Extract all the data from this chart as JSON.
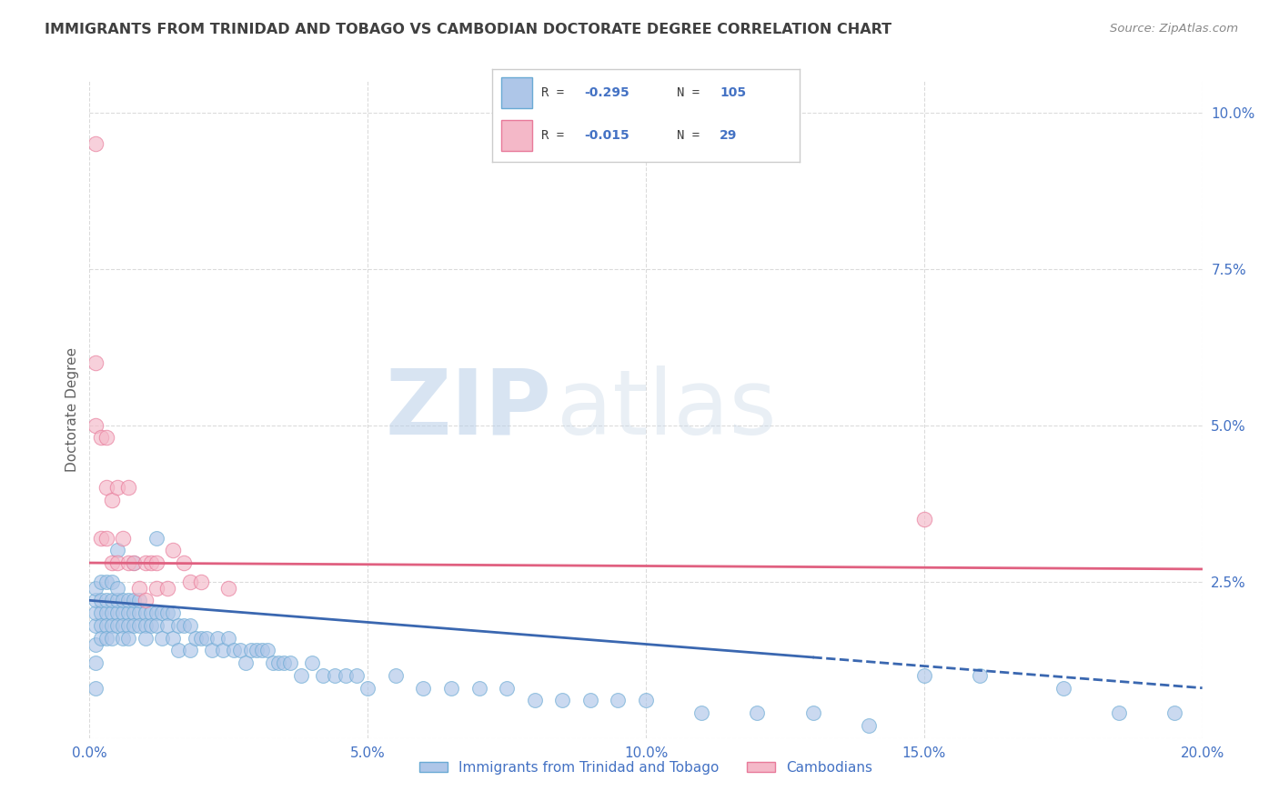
{
  "title": "IMMIGRANTS FROM TRINIDAD AND TOBAGO VS CAMBODIAN DOCTORATE DEGREE CORRELATION CHART",
  "source": "Source: ZipAtlas.com",
  "ylabel": "Doctorate Degree",
  "xlim": [
    0.0,
    0.2
  ],
  "ylim": [
    0.0,
    0.105
  ],
  "xticks": [
    0.0,
    0.05,
    0.1,
    0.15,
    0.2
  ],
  "xticklabels": [
    "0.0%",
    "5.0%",
    "10.0%",
    "15.0%",
    "20.0%"
  ],
  "yticks": [
    0.0,
    0.025,
    0.05,
    0.075,
    0.1
  ],
  "yticklabels": [
    "",
    "2.5%",
    "5.0%",
    "7.5%",
    "10.0%"
  ],
  "blue_color": "#aec6e8",
  "blue_edge": "#6aaad4",
  "pink_color": "#f4b8c8",
  "pink_edge": "#e87a9a",
  "blue_line_color": "#3a67b0",
  "pink_line_color": "#e06080",
  "watermark_zip": "ZIP",
  "watermark_atlas": "atlas",
  "legend_label_blue": "Immigrants from Trinidad and Tobago",
  "legend_label_pink": "Cambodians",
  "background_color": "#ffffff",
  "grid_color": "#cccccc",
  "title_color": "#404040",
  "axis_label_color": "#606060",
  "tick_color": "#4472c4",
  "blue_trend_x0": 0.0,
  "blue_trend_y0": 0.022,
  "blue_trend_x1": 0.2,
  "blue_trend_y1": 0.008,
  "blue_trend_solid_end": 0.13,
  "pink_trend_x0": 0.0,
  "pink_trend_y0": 0.028,
  "pink_trend_x1": 0.2,
  "pink_trend_y1": 0.027,
  "blue_scatter_x": [
    0.001,
    0.001,
    0.001,
    0.001,
    0.001,
    0.001,
    0.001,
    0.002,
    0.002,
    0.002,
    0.002,
    0.002,
    0.003,
    0.003,
    0.003,
    0.003,
    0.003,
    0.004,
    0.004,
    0.004,
    0.004,
    0.004,
    0.005,
    0.005,
    0.005,
    0.005,
    0.006,
    0.006,
    0.006,
    0.006,
    0.007,
    0.007,
    0.007,
    0.007,
    0.008,
    0.008,
    0.008,
    0.009,
    0.009,
    0.009,
    0.01,
    0.01,
    0.01,
    0.011,
    0.011,
    0.012,
    0.012,
    0.013,
    0.013,
    0.014,
    0.014,
    0.015,
    0.015,
    0.016,
    0.016,
    0.017,
    0.018,
    0.018,
    0.019,
    0.02,
    0.021,
    0.022,
    0.023,
    0.024,
    0.025,
    0.026,
    0.027,
    0.028,
    0.029,
    0.03,
    0.031,
    0.032,
    0.033,
    0.034,
    0.035,
    0.036,
    0.038,
    0.04,
    0.042,
    0.044,
    0.046,
    0.048,
    0.05,
    0.055,
    0.06,
    0.065,
    0.07,
    0.075,
    0.08,
    0.085,
    0.09,
    0.095,
    0.1,
    0.11,
    0.12,
    0.13,
    0.14,
    0.15,
    0.16,
    0.175,
    0.185,
    0.195,
    0.005,
    0.008,
    0.012
  ],
  "blue_scatter_y": [
    0.018,
    0.02,
    0.022,
    0.024,
    0.015,
    0.012,
    0.008,
    0.02,
    0.022,
    0.018,
    0.016,
    0.025,
    0.02,
    0.022,
    0.018,
    0.016,
    0.025,
    0.02,
    0.022,
    0.018,
    0.016,
    0.025,
    0.02,
    0.022,
    0.018,
    0.024,
    0.02,
    0.022,
    0.018,
    0.016,
    0.02,
    0.022,
    0.018,
    0.016,
    0.02,
    0.022,
    0.018,
    0.02,
    0.022,
    0.018,
    0.02,
    0.018,
    0.016,
    0.02,
    0.018,
    0.02,
    0.018,
    0.02,
    0.016,
    0.02,
    0.018,
    0.02,
    0.016,
    0.018,
    0.014,
    0.018,
    0.018,
    0.014,
    0.016,
    0.016,
    0.016,
    0.014,
    0.016,
    0.014,
    0.016,
    0.014,
    0.014,
    0.012,
    0.014,
    0.014,
    0.014,
    0.014,
    0.012,
    0.012,
    0.012,
    0.012,
    0.01,
    0.012,
    0.01,
    0.01,
    0.01,
    0.01,
    0.008,
    0.01,
    0.008,
    0.008,
    0.008,
    0.008,
    0.006,
    0.006,
    0.006,
    0.006,
    0.006,
    0.004,
    0.004,
    0.004,
    0.002,
    0.01,
    0.01,
    0.008,
    0.004,
    0.004,
    0.03,
    0.028,
    0.032
  ],
  "pink_scatter_x": [
    0.001,
    0.001,
    0.002,
    0.002,
    0.003,
    0.003,
    0.003,
    0.004,
    0.004,
    0.005,
    0.005,
    0.006,
    0.007,
    0.007,
    0.008,
    0.009,
    0.01,
    0.01,
    0.011,
    0.012,
    0.012,
    0.014,
    0.015,
    0.017,
    0.018,
    0.02,
    0.025,
    0.15,
    0.001
  ],
  "pink_scatter_y": [
    0.095,
    0.05,
    0.048,
    0.032,
    0.048,
    0.04,
    0.032,
    0.038,
    0.028,
    0.04,
    0.028,
    0.032,
    0.04,
    0.028,
    0.028,
    0.024,
    0.028,
    0.022,
    0.028,
    0.024,
    0.028,
    0.024,
    0.03,
    0.028,
    0.025,
    0.025,
    0.024,
    0.035,
    0.06
  ]
}
